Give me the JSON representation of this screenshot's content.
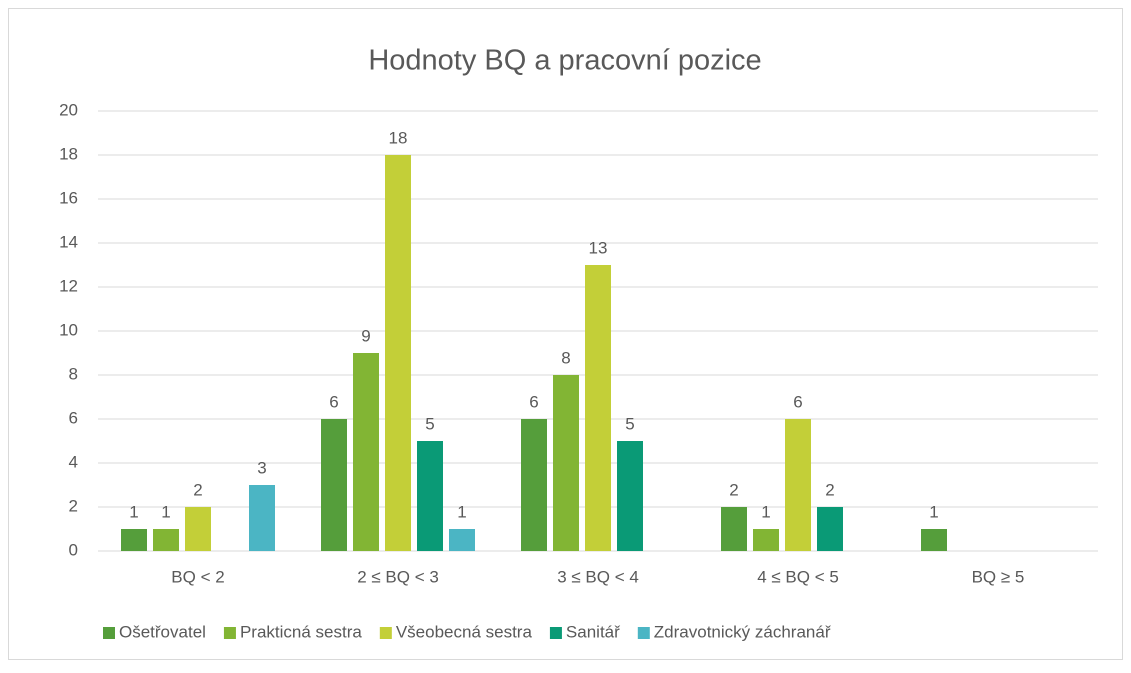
{
  "chart_data": {
    "type": "bar",
    "title": "Hodnoty BQ a pracovní pozice",
    "categories": [
      "BQ < 2",
      "2 ≤ BQ < 3",
      "3 ≤ BQ < 4",
      "4 ≤ BQ < 5",
      "BQ ≥ 5"
    ],
    "series": [
      {
        "name": "Ošetřovatel",
        "color": "#559e3b",
        "values": [
          1,
          6,
          6,
          2,
          1
        ]
      },
      {
        "name": "Prakticná sestra",
        "color": "#82b534",
        "values": [
          1,
          9,
          8,
          1,
          null
        ]
      },
      {
        "name": "Všeobecná sestra",
        "color": "#c3cf38",
        "values": [
          2,
          18,
          13,
          6,
          null
        ]
      },
      {
        "name": "Sanitář",
        "color": "#0a9a76",
        "values": [
          null,
          5,
          5,
          2,
          null
        ]
      },
      {
        "name": "Zdravotnický záchranář",
        "color": "#4bb5c4",
        "values": [
          3,
          1,
          null,
          null,
          null
        ]
      }
    ],
    "ylim": [
      0,
      20
    ],
    "yticks": [
      0,
      2,
      4,
      6,
      8,
      10,
      12,
      14,
      16,
      18,
      20
    ],
    "grid": true,
    "legend": "bottom"
  }
}
